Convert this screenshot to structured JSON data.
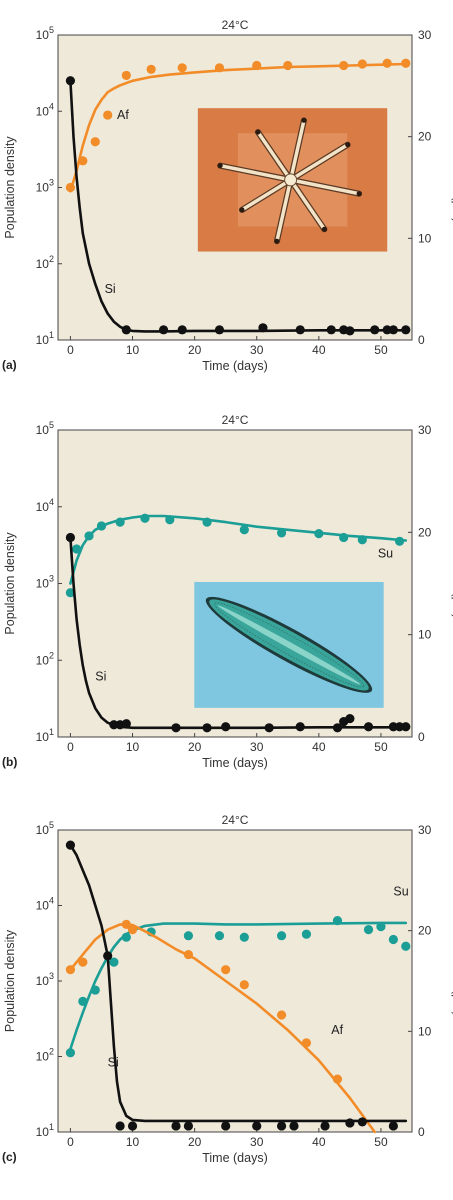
{
  "figure": {
    "background": "#ffffff",
    "plot_background": "#efe9da"
  },
  "chart_data": [
    {
      "panel_label": "(a)",
      "type": "scatter",
      "title": "24°C",
      "xlabel": "Time (days)",
      "ylabel": "Population density",
      "y2label": "Silicate (µM)",
      "xlim": [
        -2,
        55
      ],
      "ylim": [
        1,
        5
      ],
      "y_scale": "log10",
      "y2lim": [
        0,
        30
      ],
      "xticks": [
        0,
        10,
        20,
        30,
        40,
        50
      ],
      "yticks": [
        1,
        2,
        3,
        4,
        5
      ],
      "ytick_base": "10",
      "y2ticks": [
        0,
        10,
        20,
        30
      ],
      "inset": "orange",
      "series": [
        {
          "name": "Af",
          "axis": "left",
          "color": "#f28c28",
          "label_at": [
            7.5,
            3.9
          ],
          "x": [
            0,
            2,
            4,
            6,
            9,
            13,
            18,
            24,
            30,
            35,
            44,
            47,
            51,
            54
          ],
          "y": [
            3.0,
            3.35,
            3.6,
            3.95,
            4.47,
            4.55,
            4.57,
            4.57,
            4.6,
            4.6,
            4.6,
            4.62,
            4.63,
            4.63
          ],
          "curve_x": [
            0,
            1,
            2,
            3,
            4,
            5,
            6,
            7,
            8,
            10,
            13,
            16,
            20,
            25,
            30,
            35,
            40,
            45,
            50,
            54
          ],
          "curve_y": [
            2.95,
            3.22,
            3.55,
            3.82,
            4.02,
            4.15,
            4.25,
            4.3,
            4.34,
            4.4,
            4.45,
            4.48,
            4.51,
            4.54,
            4.56,
            4.58,
            4.59,
            4.6,
            4.61,
            4.62
          ]
        },
        {
          "name": "Si",
          "axis": "right",
          "color": "#111111",
          "label_at": [
            5.5,
            4.6
          ],
          "x": [
            0,
            9,
            15,
            18,
            24,
            31,
            37,
            42,
            44,
            45,
            49,
            51,
            52,
            54
          ],
          "y": [
            25.5,
            1.0,
            1.0,
            1.0,
            1.0,
            1.2,
            1.0,
            1.0,
            1.0,
            0.9,
            1.0,
            1.0,
            1.0,
            1.0
          ],
          "curve_x": [
            0,
            0.5,
            1,
            1.5,
            2,
            3,
            4,
            5,
            6,
            7,
            8,
            9,
            10,
            12,
            15,
            20,
            30,
            40,
            50,
            54
          ],
          "curve_y": [
            25.5,
            20,
            16,
            13,
            10.5,
            7.5,
            5.5,
            3.8,
            2.6,
            1.8,
            1.3,
            1.0,
            0.9,
            0.85,
            0.85,
            0.9,
            0.9,
            0.95,
            0.95,
            0.95
          ]
        }
      ]
    },
    {
      "panel_label": "(b)",
      "type": "scatter",
      "title": "24°C",
      "xlabel": "Time (days)",
      "ylabel": "Population density",
      "y2label": "Silicate (µM)",
      "xlim": [
        -2,
        55
      ],
      "ylim": [
        1,
        5
      ],
      "y_scale": "log10",
      "y2lim": [
        0,
        30
      ],
      "xticks": [
        0,
        10,
        20,
        30,
        40,
        50
      ],
      "yticks": [
        1,
        2,
        3,
        4,
        5
      ],
      "ytick_base": "10",
      "y2ticks": [
        0,
        10,
        20,
        30
      ],
      "inset": "blue",
      "series": [
        {
          "name": "Su",
          "axis": "left",
          "color": "#1a9e96",
          "label_at": [
            49.5,
            3.34
          ],
          "x": [
            0,
            1,
            3,
            5,
            8,
            12,
            16,
            22,
            28,
            34,
            40,
            44,
            47,
            53
          ],
          "y": [
            2.88,
            3.45,
            3.62,
            3.75,
            3.8,
            3.85,
            3.83,
            3.8,
            3.7,
            3.66,
            3.65,
            3.6,
            3.57,
            3.55
          ],
          "curve_x": [
            0,
            1,
            2,
            3,
            4,
            6,
            8,
            10,
            12,
            15,
            20,
            25,
            30,
            35,
            40,
            45,
            50,
            54
          ],
          "curve_y": [
            3.0,
            3.3,
            3.5,
            3.62,
            3.7,
            3.78,
            3.83,
            3.86,
            3.88,
            3.88,
            3.85,
            3.8,
            3.74,
            3.7,
            3.66,
            3.62,
            3.59,
            3.56
          ]
        },
        {
          "name": "Si",
          "axis": "right",
          "color": "#111111",
          "label_at": [
            4,
            5.5
          ],
          "x": [
            0,
            7,
            8,
            9,
            17,
            22,
            25,
            32,
            37,
            43,
            44,
            45,
            48,
            52,
            53,
            54
          ],
          "y": [
            19.5,
            1.2,
            1.2,
            1.3,
            0.9,
            0.9,
            1.0,
            0.9,
            1.0,
            0.9,
            1.5,
            1.8,
            1.0,
            1.0,
            1.0,
            1.0
          ],
          "curve_x": [
            0,
            0.5,
            1,
            1.5,
            2,
            2.5,
            3,
            4,
            5,
            6,
            7,
            8,
            10,
            15,
            20,
            30,
            40,
            50,
            54
          ],
          "curve_y": [
            19.5,
            15,
            11.5,
            9,
            7,
            5.5,
            4.3,
            2.8,
            1.9,
            1.4,
            1.15,
            1.0,
            0.9,
            0.9,
            0.9,
            0.9,
            0.95,
            0.95,
            0.95
          ]
        }
      ]
    },
    {
      "panel_label": "(c)",
      "type": "scatter",
      "title": "24°C",
      "xlabel": "Time (days)",
      "ylabel": "Population density",
      "y2label": "Silicate (µM)",
      "xlim": [
        -2,
        55
      ],
      "ylim": [
        1,
        5
      ],
      "y_scale": "log10",
      "y2lim": [
        0,
        30
      ],
      "xticks": [
        0,
        10,
        20,
        30,
        40,
        50
      ],
      "yticks": [
        1,
        2,
        3,
        4,
        5
      ],
      "ytick_base": "10",
      "y2ticks": [
        0,
        10,
        20,
        30
      ],
      "inset": null,
      "series": [
        {
          "name": "Su",
          "axis": "left",
          "color": "#1a9e96",
          "label_at": [
            52,
            4.13
          ],
          "x": [
            0,
            2,
            4,
            7,
            9,
            13,
            19,
            24,
            28,
            34,
            38,
            43,
            48,
            50,
            52,
            54
          ],
          "y": [
            2.05,
            2.73,
            2.88,
            3.25,
            3.58,
            3.65,
            3.6,
            3.6,
            3.58,
            3.6,
            3.62,
            3.8,
            3.68,
            3.72,
            3.55,
            3.46
          ],
          "curve_x": [
            0,
            1,
            2,
            3,
            4,
            5,
            6,
            7,
            8,
            9,
            10,
            12,
            15,
            20,
            25,
            30,
            40,
            50,
            54
          ],
          "curve_y": [
            2.1,
            2.35,
            2.58,
            2.8,
            3.0,
            3.17,
            3.32,
            3.45,
            3.55,
            3.62,
            3.67,
            3.73,
            3.76,
            3.76,
            3.75,
            3.75,
            3.76,
            3.77,
            3.77
          ],
          "label_offset_note": ""
        },
        {
          "name": "Af",
          "axis": "left",
          "color": "#f28c28",
          "label_at": [
            42,
            2.3
          ],
          "x": [
            0,
            2,
            9,
            10,
            19,
            25,
            28,
            34,
            38,
            43
          ],
          "y": [
            3.15,
            3.25,
            3.75,
            3.68,
            3.35,
            3.15,
            2.95,
            2.55,
            2.18,
            1.7
          ],
          "curve_x": [
            0,
            2,
            4,
            6,
            8,
            10,
            12,
            14,
            17,
            20,
            25,
            30,
            35,
            40,
            45,
            49
          ],
          "curve_y": [
            3.15,
            3.35,
            3.55,
            3.68,
            3.75,
            3.74,
            3.66,
            3.57,
            3.42,
            3.3,
            3.0,
            2.7,
            2.35,
            1.95,
            1.45,
            1.0
          ]
        },
        {
          "name": "Si",
          "axis": "right",
          "color": "#111111",
          "label_at": [
            6,
            6.5
          ],
          "x": [
            0,
            6,
            8,
            10,
            17,
            19,
            25,
            30,
            34,
            36,
            41,
            45,
            47,
            52
          ],
          "y": [
            28.5,
            17.5,
            0.6,
            0.6,
            0.6,
            0.6,
            0.6,
            0.6,
            0.6,
            0.6,
            0.6,
            0.9,
            1.0,
            0.6
          ],
          "curve_x": [
            0,
            1,
            2,
            3,
            4,
            5,
            6,
            6.5,
            7,
            7.5,
            8,
            9,
            10,
            12,
            20,
            30,
            40,
            50,
            54
          ],
          "curve_y": [
            28.5,
            27.5,
            26,
            24.5,
            22.5,
            20.5,
            17.5,
            13,
            8.5,
            5,
            3,
            1.6,
            1.2,
            1.1,
            1.1,
            1.1,
            1.1,
            1.1,
            1.1
          ]
        }
      ]
    }
  ]
}
